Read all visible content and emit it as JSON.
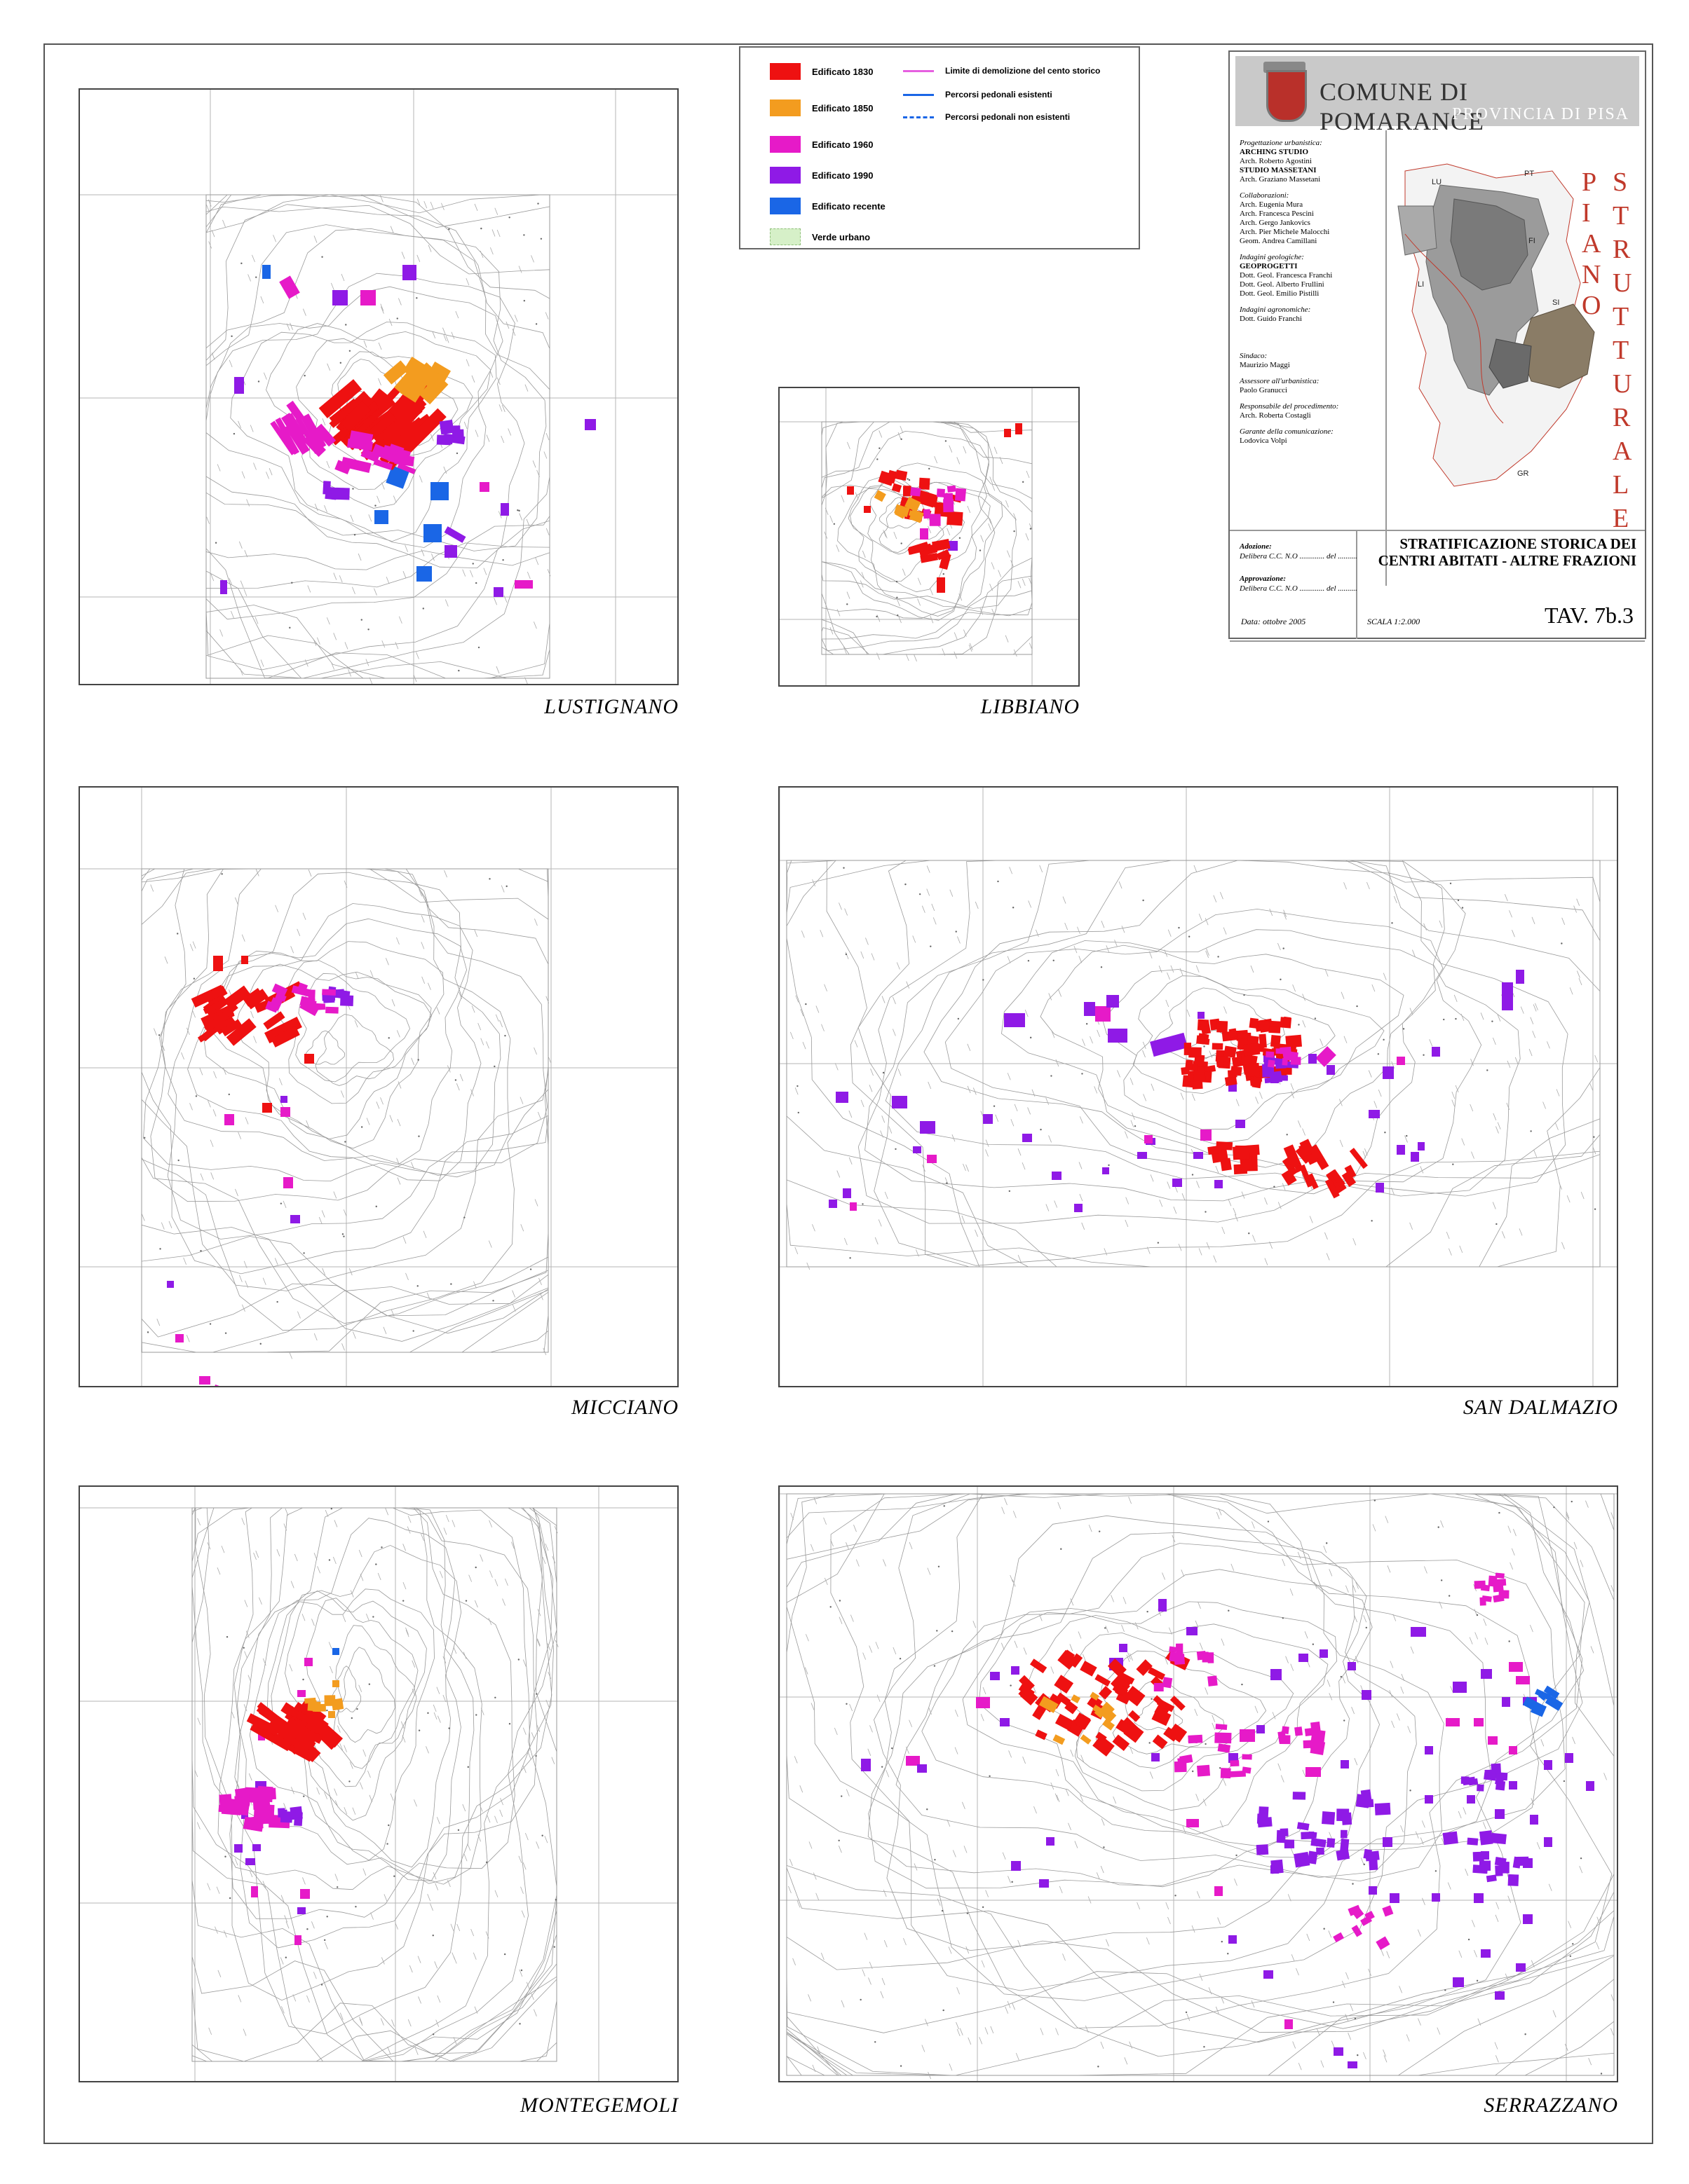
{
  "sheet": {
    "places": [
      "LUSTIGNANO",
      "LIBBIANO",
      "MICCIANO",
      "SAN DALMAZIO",
      "MONTEGEMOLI",
      "SERRAZZANO"
    ]
  },
  "legend": {
    "items": [
      {
        "label": "Edificato 1830",
        "color": "#ee1111"
      },
      {
        "label": "Edificato 1850",
        "color": "#f39c1f"
      },
      {
        "label": "Edificato 1960",
        "color": "#e61ac8"
      },
      {
        "label": "Edificato 1990",
        "color": "#8f1ae6"
      },
      {
        "label": "Edificato recente",
        "color": "#1a66e6"
      },
      {
        "label": "Verde urbano",
        "color": "#d6f0c8"
      }
    ],
    "lines": [
      {
        "label": "Limite di demolizione del cento storico",
        "color": "#e65fe0",
        "style": "solid"
      },
      {
        "label": "Percorsi  pedonali esistenti",
        "color": "#1a66e6",
        "style": "solid"
      },
      {
        "label": "Percorsi  pedonali non esistenti",
        "color": "#1a66e6",
        "style": "dashed"
      }
    ]
  },
  "title_block": {
    "comune": "COMUNE DI POMARANCE",
    "provincia": "PROVINCIA DI PISA",
    "piano": "PIANO",
    "strutturale": "STRUTTURALE",
    "credits": [
      {
        "role": "Progettazione urbanistica:",
        "lines": [
          "ARCHING STUDIO",
          "Arch. Roberto Agostini",
          "STUDIO MASSETANI",
          "Arch. Graziano Massetani"
        ]
      },
      {
        "role": "Collaborazioni:",
        "lines": [
          "Arch. Eugenia Mura",
          "Arch. Francesca Pescini",
          "Arch. Gergo Jankovics",
          "Arch. Pier Michele Malocchi",
          "Geom. Andrea Camillani"
        ]
      },
      {
        "role": "Indagini geologiche:",
        "lines": [
          "GEOPROGETTI",
          "Dott. Geol. Francesca Franchi",
          "Dott. Geol. Alberto Frullini",
          "Dott. Geol. Emilio Pistilli"
        ]
      },
      {
        "role": "Indagini agronomiche:",
        "lines": [
          "Dott. Guido Franchi"
        ]
      },
      {
        "role": "Sindaco:",
        "lines": [
          "Maurizio Maggi"
        ]
      },
      {
        "role": "Assessore all'urbanistica:",
        "lines": [
          "Paolo Granucci"
        ]
      },
      {
        "role": "Responsabile del procedimento:",
        "lines": [
          "Arch. Roberta Costagli"
        ]
      },
      {
        "role": "Garante della comunicazione:",
        "lines": [
          "Lodovica Volpi"
        ]
      }
    ],
    "region_labels": [
      "LU",
      "PT",
      "FI",
      "SI",
      "LI",
      "GR"
    ],
    "adozione_label": "Adozione:",
    "adozione_text": "Delibera C.C. N.O ............. del ..........",
    "approvazione_label": "Approvazione:",
    "approvazione_text": "Delibera C.C. N.O ............. del ..........",
    "heading_line1": "STRATIFICAZIONE STORICA DEI",
    "heading_line2": "CENTRI ABITATI - ALTRE FRAZIONI",
    "data": "Data: ottobre 2005",
    "scala": "SCALA 1:2.000",
    "tav": "TAV. 7b.3"
  },
  "colors": {
    "e1830": "#ee1111",
    "e1850": "#f39c1f",
    "e1960": "#e61ac8",
    "e1990": "#8f1ae6",
    "recent": "#1a66e6",
    "contour": "#9a9a9a",
    "grid": "#b5b5b5"
  }
}
